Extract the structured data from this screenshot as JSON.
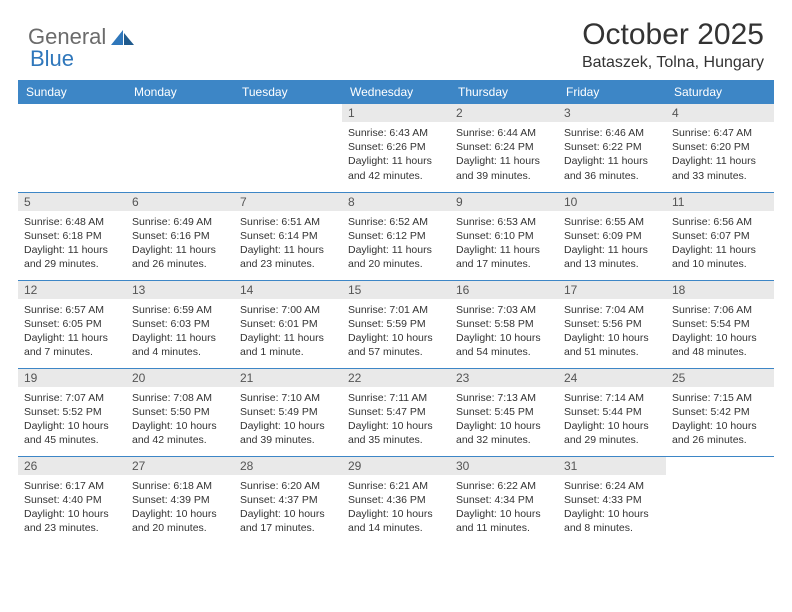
{
  "logo": {
    "general": "General",
    "blue": "Blue"
  },
  "title": "October 2025",
  "location": "Bataszek, Tolna, Hungary",
  "colors": {
    "header_bg": "#3d86c6",
    "header_text": "#ffffff",
    "daynum_bg": "#e9e9e9",
    "daynum_text": "#555555",
    "body_text": "#333333",
    "logo_gray": "#6b6b6b",
    "logo_blue": "#2f77bb",
    "cell_border": "#3d86c6"
  },
  "weekdays": [
    "Sunday",
    "Monday",
    "Tuesday",
    "Wednesday",
    "Thursday",
    "Friday",
    "Saturday"
  ],
  "weeks": [
    [
      {
        "n": "",
        "sr": "",
        "ss": "",
        "dl": ""
      },
      {
        "n": "",
        "sr": "",
        "ss": "",
        "dl": ""
      },
      {
        "n": "",
        "sr": "",
        "ss": "",
        "dl": ""
      },
      {
        "n": "1",
        "sr": "6:43 AM",
        "ss": "6:26 PM",
        "dl": "11 hours and 42 minutes."
      },
      {
        "n": "2",
        "sr": "6:44 AM",
        "ss": "6:24 PM",
        "dl": "11 hours and 39 minutes."
      },
      {
        "n": "3",
        "sr": "6:46 AM",
        "ss": "6:22 PM",
        "dl": "11 hours and 36 minutes."
      },
      {
        "n": "4",
        "sr": "6:47 AM",
        "ss": "6:20 PM",
        "dl": "11 hours and 33 minutes."
      }
    ],
    [
      {
        "n": "5",
        "sr": "6:48 AM",
        "ss": "6:18 PM",
        "dl": "11 hours and 29 minutes."
      },
      {
        "n": "6",
        "sr": "6:49 AM",
        "ss": "6:16 PM",
        "dl": "11 hours and 26 minutes."
      },
      {
        "n": "7",
        "sr": "6:51 AM",
        "ss": "6:14 PM",
        "dl": "11 hours and 23 minutes."
      },
      {
        "n": "8",
        "sr": "6:52 AM",
        "ss": "6:12 PM",
        "dl": "11 hours and 20 minutes."
      },
      {
        "n": "9",
        "sr": "6:53 AM",
        "ss": "6:10 PM",
        "dl": "11 hours and 17 minutes."
      },
      {
        "n": "10",
        "sr": "6:55 AM",
        "ss": "6:09 PM",
        "dl": "11 hours and 13 minutes."
      },
      {
        "n": "11",
        "sr": "6:56 AM",
        "ss": "6:07 PM",
        "dl": "11 hours and 10 minutes."
      }
    ],
    [
      {
        "n": "12",
        "sr": "6:57 AM",
        "ss": "6:05 PM",
        "dl": "11 hours and 7 minutes."
      },
      {
        "n": "13",
        "sr": "6:59 AM",
        "ss": "6:03 PM",
        "dl": "11 hours and 4 minutes."
      },
      {
        "n": "14",
        "sr": "7:00 AM",
        "ss": "6:01 PM",
        "dl": "11 hours and 1 minute."
      },
      {
        "n": "15",
        "sr": "7:01 AM",
        "ss": "5:59 PM",
        "dl": "10 hours and 57 minutes."
      },
      {
        "n": "16",
        "sr": "7:03 AM",
        "ss": "5:58 PM",
        "dl": "10 hours and 54 minutes."
      },
      {
        "n": "17",
        "sr": "7:04 AM",
        "ss": "5:56 PM",
        "dl": "10 hours and 51 minutes."
      },
      {
        "n": "18",
        "sr": "7:06 AM",
        "ss": "5:54 PM",
        "dl": "10 hours and 48 minutes."
      }
    ],
    [
      {
        "n": "19",
        "sr": "7:07 AM",
        "ss": "5:52 PM",
        "dl": "10 hours and 45 minutes."
      },
      {
        "n": "20",
        "sr": "7:08 AM",
        "ss": "5:50 PM",
        "dl": "10 hours and 42 minutes."
      },
      {
        "n": "21",
        "sr": "7:10 AM",
        "ss": "5:49 PM",
        "dl": "10 hours and 39 minutes."
      },
      {
        "n": "22",
        "sr": "7:11 AM",
        "ss": "5:47 PM",
        "dl": "10 hours and 35 minutes."
      },
      {
        "n": "23",
        "sr": "7:13 AM",
        "ss": "5:45 PM",
        "dl": "10 hours and 32 minutes."
      },
      {
        "n": "24",
        "sr": "7:14 AM",
        "ss": "5:44 PM",
        "dl": "10 hours and 29 minutes."
      },
      {
        "n": "25",
        "sr": "7:15 AM",
        "ss": "5:42 PM",
        "dl": "10 hours and 26 minutes."
      }
    ],
    [
      {
        "n": "26",
        "sr": "6:17 AM",
        "ss": "4:40 PM",
        "dl": "10 hours and 23 minutes."
      },
      {
        "n": "27",
        "sr": "6:18 AM",
        "ss": "4:39 PM",
        "dl": "10 hours and 20 minutes."
      },
      {
        "n": "28",
        "sr": "6:20 AM",
        "ss": "4:37 PM",
        "dl": "10 hours and 17 minutes."
      },
      {
        "n": "29",
        "sr": "6:21 AM",
        "ss": "4:36 PM",
        "dl": "10 hours and 14 minutes."
      },
      {
        "n": "30",
        "sr": "6:22 AM",
        "ss": "4:34 PM",
        "dl": "10 hours and 11 minutes."
      },
      {
        "n": "31",
        "sr": "6:24 AM",
        "ss": "4:33 PM",
        "dl": "10 hours and 8 minutes."
      },
      {
        "n": "",
        "sr": "",
        "ss": "",
        "dl": ""
      }
    ]
  ],
  "labels": {
    "sunrise": "Sunrise:",
    "sunset": "Sunset:",
    "daylight": "Daylight:"
  }
}
